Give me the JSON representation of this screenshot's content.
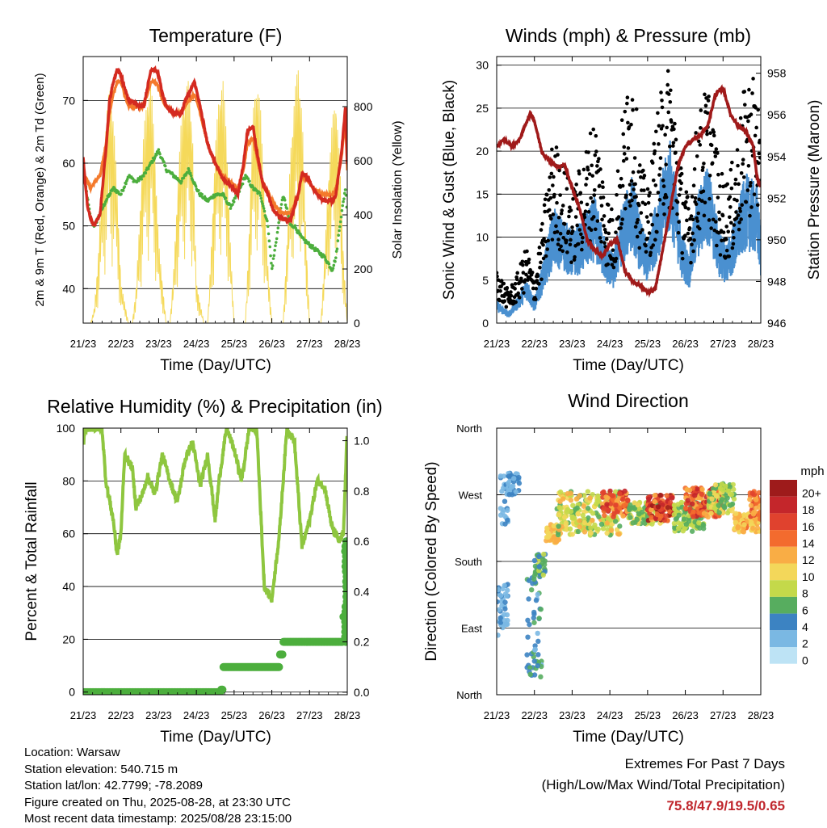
{
  "x_ticks": [
    "21/23",
    "22/23",
    "23/23",
    "24/23",
    "25/23",
    "26/23",
    "27/23",
    "28/23"
  ],
  "colors": {
    "t2m": "#d42a20",
    "t9m": "#f47a2c",
    "td": "#4cae3d",
    "solar": "#f5d95a",
    "gust": "#000000",
    "wind": "#4a90d0",
    "pressure": "#a01a1a",
    "rh": "#8ec63f",
    "precip": "#4cae3d"
  },
  "chart_data": [
    {
      "id": "temperature",
      "type": "line",
      "title": "Temperature (F)",
      "xlabel": "Time (Day/UTC)",
      "ylabel": "2m & 9m T (Red, Orange) & 2m Td (Green)",
      "y2label": "Solar Insolation (Yellow)",
      "ylim": [
        34.5,
        77
      ],
      "yticks": [
        40,
        50,
        60,
        70
      ],
      "y2lim": [
        0,
        985
      ],
      "y2ticks": [
        0,
        200,
        400,
        600,
        800
      ],
      "x_days": [
        0,
        7
      ],
      "series": [
        {
          "key": "t2m",
          "x": [
            0,
            0.05,
            0.12,
            0.2,
            0.3,
            0.45,
            0.6,
            0.7,
            0.8,
            0.9,
            1.0,
            1.1,
            1.2,
            1.4,
            1.6,
            1.7,
            1.8,
            1.9,
            2.0,
            2.1,
            2.2,
            2.4,
            2.6,
            2.7,
            2.8,
            2.95,
            3.1,
            3.3,
            3.5,
            3.7,
            3.9,
            4.1,
            4.25,
            4.35,
            4.5,
            4.6,
            4.75,
            4.9,
            5.0,
            5.1,
            5.3,
            5.5,
            5.7,
            5.8,
            5.9,
            6.1,
            6.2,
            6.4,
            6.6,
            6.7,
            6.85,
            6.95,
            7.0
          ],
          "y": [
            61,
            57,
            53,
            51,
            50,
            52,
            62,
            70,
            73,
            75,
            74,
            72,
            70,
            69.5,
            69,
            72,
            75,
            75,
            74,
            71,
            69,
            68,
            68,
            70,
            71,
            73,
            69,
            63,
            60,
            57.5,
            56.5,
            55,
            60,
            65,
            66,
            62,
            57,
            55,
            53,
            52,
            51,
            51,
            55,
            58.5,
            58,
            56,
            55,
            54,
            54,
            55,
            62,
            69,
            60
          ]
        },
        {
          "key": "t9m",
          "x": [
            0,
            0.05,
            0.12,
            0.2,
            0.3,
            0.45,
            0.6,
            0.7,
            0.8,
            0.9,
            1.0,
            1.1,
            1.2,
            1.4,
            1.6,
            1.7,
            1.8,
            1.9,
            2.0,
            2.1,
            2.2,
            2.4,
            2.6,
            2.7,
            2.8,
            2.95,
            3.1,
            3.3,
            3.5,
            3.7,
            3.9,
            4.1,
            4.25,
            4.35,
            4.5,
            4.6,
            4.75,
            4.9,
            5.0,
            5.1,
            5.3,
            5.5,
            5.7,
            5.8,
            5.9,
            6.1,
            6.2,
            6.4,
            6.6,
            6.7,
            6.85,
            6.95,
            7.0
          ],
          "y": [
            59,
            58,
            57,
            56,
            57,
            58,
            63,
            68,
            71,
            73,
            73,
            71,
            69,
            69,
            69,
            71,
            73,
            73,
            72,
            70,
            69,
            68,
            68,
            69,
            70,
            71,
            68,
            63,
            60,
            58,
            57,
            56,
            59,
            63,
            64,
            61,
            57,
            55.5,
            54,
            53,
            52,
            52,
            55,
            58,
            57.5,
            56,
            55.5,
            55,
            55,
            56,
            61,
            67,
            59
          ]
        },
        {
          "key": "td",
          "x": [
            0,
            0.1,
            0.2,
            0.3,
            0.45,
            0.6,
            0.8,
            1.0,
            1.2,
            1.4,
            1.6,
            1.8,
            2.0,
            2.2,
            2.4,
            2.6,
            2.8,
            3.0,
            3.1,
            3.3,
            3.5,
            3.7,
            3.9,
            4.1,
            4.3,
            4.5,
            4.7,
            4.9,
            5.0,
            5.1,
            5.3,
            5.5,
            5.6,
            5.8,
            6.0,
            6.2,
            6.4,
            6.6,
            6.7,
            6.8,
            6.95,
            7.0
          ],
          "y": [
            59,
            55,
            51,
            50,
            52,
            54,
            56,
            55,
            58,
            57,
            58,
            60,
            62,
            59,
            58,
            57,
            59,
            56,
            55,
            54,
            55,
            55,
            53,
            55,
            58,
            56,
            55,
            50,
            43,
            47,
            55,
            50,
            50,
            48,
            47,
            46,
            45,
            43,
            45,
            50,
            56,
            52
          ]
        },
        {
          "key": "solar",
          "x": [
            0,
            0.2,
            0.3,
            0.4,
            0.5,
            0.6,
            0.7,
            0.8,
            0.9,
            1.0,
            1.2,
            1.3,
            1.4,
            1.5,
            1.6,
            1.7,
            1.8,
            1.9,
            2.0,
            2.2,
            2.3,
            2.4,
            2.5,
            2.6,
            2.7,
            2.8,
            2.9,
            3.0,
            3.2,
            3.3,
            3.4,
            3.5,
            3.6,
            3.7,
            3.8,
            3.9,
            4.0,
            4.2,
            4.3,
            4.4,
            4.5,
            4.6,
            4.7,
            4.8,
            4.9,
            5.0,
            5.2,
            5.3,
            5.4,
            5.5,
            5.6,
            5.7,
            5.8,
            5.9,
            6.0,
            6.2,
            6.3,
            6.4,
            6.5,
            6.6,
            6.7,
            6.8,
            6.9,
            7.0
          ],
          "y": [
            0,
            0,
            60,
            250,
            550,
            750,
            880,
            780,
            500,
            150,
            0,
            0,
            120,
            400,
            700,
            850,
            900,
            650,
            300,
            0,
            0,
            200,
            500,
            750,
            870,
            900,
            720,
            150,
            0,
            0,
            300,
            650,
            850,
            920,
            700,
            300,
            0,
            0,
            0,
            350,
            780,
            920,
            800,
            500,
            200,
            0,
            0,
            0,
            300,
            650,
            850,
            960,
            800,
            350,
            0,
            0,
            0,
            250,
            550,
            750,
            850,
            600,
            250,
            0
          ]
        }
      ]
    },
    {
      "id": "winds",
      "type": "scatter",
      "title": "Winds (mph) & Pressure (mb)",
      "xlabel": "Time (Day/UTC)",
      "ylabel": "Sonic Wind & Gust (Blue, Black)",
      "y2label": "Station Pressure (Maroon)",
      "ylim": [
        0,
        31
      ],
      "yticks": [
        0,
        5,
        10,
        15,
        20,
        25,
        30
      ],
      "y2lim": [
        946,
        958.8
      ],
      "y2ticks": [
        946,
        948,
        950,
        952,
        954,
        956,
        958
      ],
      "x_days": [
        0,
        7
      ],
      "series": [
        {
          "key": "gust",
          "x": [
            0,
            0.3,
            0.5,
            0.8,
            1.0,
            1.2,
            1.5,
            1.8,
            2.0,
            2.3,
            2.6,
            2.9,
            3.1,
            3.3,
            3.6,
            3.8,
            4.0,
            4.3,
            4.6,
            4.9,
            5.1,
            5.3,
            5.6,
            5.9,
            6.1,
            6.3,
            6.6,
            6.9,
            7.0
          ],
          "y": [
            5,
            3,
            4,
            7,
            4,
            9,
            17,
            14,
            12,
            15,
            19,
            12,
            10,
            18,
            24,
            15,
            12,
            20,
            24,
            14,
            11,
            18,
            22,
            14,
            13,
            15,
            22,
            23,
            14
          ]
        },
        {
          "key": "wind",
          "x": [
            0,
            0.3,
            0.5,
            0.8,
            1.0,
            1.2,
            1.5,
            1.8,
            2.0,
            2.3,
            2.6,
            2.9,
            3.1,
            3.3,
            3.6,
            3.8,
            4.0,
            4.3,
            4.6,
            4.9,
            5.1,
            5.3,
            5.6,
            5.9,
            6.1,
            6.3,
            6.6,
            6.9,
            7.0
          ],
          "y": [
            2,
            1,
            2,
            4,
            2,
            5,
            10,
            9,
            8,
            9,
            11,
            7,
            6,
            10,
            13,
            9,
            7,
            12,
            16,
            8,
            6,
            11,
            14,
            8,
            7,
            9,
            13,
            12,
            8
          ]
        },
        {
          "key": "pressure",
          "x": [
            0,
            0.2,
            0.4,
            0.6,
            0.8,
            0.9,
            1.0,
            1.2,
            1.4,
            1.6,
            1.8,
            2.0,
            2.2,
            2.4,
            2.6,
            2.8,
            3.0,
            3.2,
            3.4,
            3.6,
            3.8,
            4.0,
            4.2,
            4.4,
            4.6,
            4.8,
            5.0,
            5.2,
            5.4,
            5.6,
            5.8,
            6.0,
            6.2,
            6.4,
            6.6,
            6.8,
            6.9,
            7.0
          ],
          "y": [
            954.5,
            954.8,
            954.5,
            954.8,
            955.7,
            956.1,
            955.7,
            954.2,
            953.8,
            953.5,
            953.6,
            952.5,
            951.5,
            950,
            949.5,
            949.2,
            949.8,
            950,
            948.5,
            948,
            947.8,
            947.5,
            947.6,
            949.5,
            951.5,
            953.5,
            954.5,
            954.8,
            955,
            955.5,
            957,
            957.3,
            956,
            955.5,
            955.2,
            954.5,
            953,
            952.5
          ]
        }
      ]
    },
    {
      "id": "humidity",
      "type": "line",
      "title": "Relative Humidity (%) & Precipitation (in)",
      "xlabel": "Time (Day/UTC)",
      "ylabel": "Percent & Total Rainfall",
      "ylim": [
        -1,
        100
      ],
      "yticks": [
        0,
        20,
        40,
        60,
        80,
        100
      ],
      "y2lim": [
        -0.01,
        1.05
      ],
      "y2ticks": [
        0.0,
        0.2,
        0.4,
        0.6,
        0.8,
        1.0
      ],
      "x_days": [
        0,
        7
      ],
      "series": [
        {
          "key": "rh",
          "x": [
            0,
            0.05,
            0.1,
            0.5,
            0.6,
            0.8,
            0.9,
            1.0,
            1.1,
            1.3,
            1.4,
            1.6,
            1.7,
            1.9,
            2.1,
            2.3,
            2.5,
            2.7,
            2.9,
            3.1,
            3.3,
            3.5,
            3.6,
            3.8,
            4.0,
            4.2,
            4.4,
            4.6,
            4.8,
            5.0,
            5.2,
            5.4,
            5.6,
            5.8,
            6.0,
            6.2,
            6.4,
            6.6,
            6.8,
            6.9,
            7.0
          ],
          "y": [
            93,
            100,
            100,
            100,
            80,
            65,
            52,
            60,
            90,
            85,
            70,
            76,
            82,
            75,
            90,
            80,
            72,
            88,
            95,
            78,
            90,
            65,
            80,
            100,
            92,
            80,
            100,
            100,
            40,
            35,
            60,
            100,
            95,
            55,
            65,
            80,
            78,
            62,
            57,
            60,
            100
          ]
        },
        {
          "key": "precip",
          "x": [
            0,
            3.5,
            3.65,
            3.7,
            5.1,
            5.2,
            5.3,
            6.8,
            6.9,
            6.95,
            7.0
          ],
          "y": [
            0,
            0,
            0.01,
            0.1,
            0.1,
            0.15,
            0.2,
            0.2,
            0.3,
            0.55,
            0.62
          ]
        }
      ]
    },
    {
      "id": "direction",
      "type": "scatter",
      "title": "Wind Direction",
      "xlabel": "Time (Day/UTC)",
      "ylabel": "Direction (Colored By Speed)",
      "yticklabels": [
        "North",
        "East",
        "South",
        "West",
        "North"
      ],
      "ylim": [
        0,
        360
      ],
      "x_days": [
        0,
        7
      ],
      "legend_title": "mph",
      "legend_labels": [
        "20+",
        "18",
        "16",
        "14",
        "12",
        "10",
        "8",
        "6",
        "4",
        "2",
        "0"
      ],
      "legend_colors": [
        "#9e1b1b",
        "#c4262b",
        "#e0422e",
        "#f36b2e",
        "#f9ad45",
        "#f3d75a",
        "#c4d94a",
        "#57ad5f",
        "#3c83c2",
        "#7ab8e3",
        "#bde3f5"
      ],
      "clusters": [
        {
          "x": [
            0.0,
            0.3
          ],
          "y": [
            80,
            150
          ],
          "speed": [
            1,
            4
          ]
        },
        {
          "x": [
            0.1,
            0.3
          ],
          "y": [
            230,
            300
          ],
          "speed": [
            1,
            4
          ]
        },
        {
          "x": [
            0.3,
            0.6
          ],
          "y": [
            270,
            300
          ],
          "speed": [
            2,
            5
          ]
        },
        {
          "x": [
            0.8,
            1.2
          ],
          "y": [
            20,
            160
          ],
          "speed": [
            2,
            6
          ]
        },
        {
          "x": [
            1.0,
            1.3
          ],
          "y": [
            160,
            190
          ],
          "speed": [
            4,
            8
          ]
        },
        {
          "x": [
            1.3,
            1.7
          ],
          "y": [
            205,
            230
          ],
          "speed": [
            9,
            13
          ]
        },
        {
          "x": [
            1.6,
            3.3
          ],
          "y": [
            215,
            275
          ],
          "speed": [
            6,
            12
          ]
        },
        {
          "x": [
            2.8,
            3.5
          ],
          "y": [
            240,
            275
          ],
          "speed": [
            11,
            19
          ]
        },
        {
          "x": [
            3.5,
            4.4
          ],
          "y": [
            230,
            260
          ],
          "speed": [
            5,
            10
          ]
        },
        {
          "x": [
            4.0,
            4.7
          ],
          "y": [
            235,
            270
          ],
          "speed": [
            12,
            20
          ]
        },
        {
          "x": [
            4.7,
            5.5
          ],
          "y": [
            220,
            260
          ],
          "speed": [
            5,
            9
          ]
        },
        {
          "x": [
            5.0,
            6.0
          ],
          "y": [
            240,
            280
          ],
          "speed": [
            11,
            19
          ]
        },
        {
          "x": [
            5.6,
            6.3
          ],
          "y": [
            245,
            285
          ],
          "speed": [
            5,
            10
          ]
        },
        {
          "x": [
            6.3,
            7.0
          ],
          "y": [
            220,
            245
          ],
          "speed": [
            9,
            14
          ]
        },
        {
          "x": [
            6.7,
            7.0
          ],
          "y": [
            240,
            275
          ],
          "speed": [
            11,
            17
          ]
        }
      ]
    }
  ],
  "info": {
    "location": "Location: Warsaw",
    "elevation": "Station elevation: 540.715 m",
    "latlon": "Station lat/lon: 42.7799; -78.2089",
    "created": "Figure created on Thu, 2025-08-28, at 23:30 UTC",
    "latest": "Most recent data timestamp: 2025/08/28 23:15:00"
  },
  "extremes": {
    "title": "Extremes For Past 7 Days",
    "subtitle": "(High/Low/Max Wind/Total Precipitation)",
    "values": "75.8/47.9/19.5/0.65"
  }
}
